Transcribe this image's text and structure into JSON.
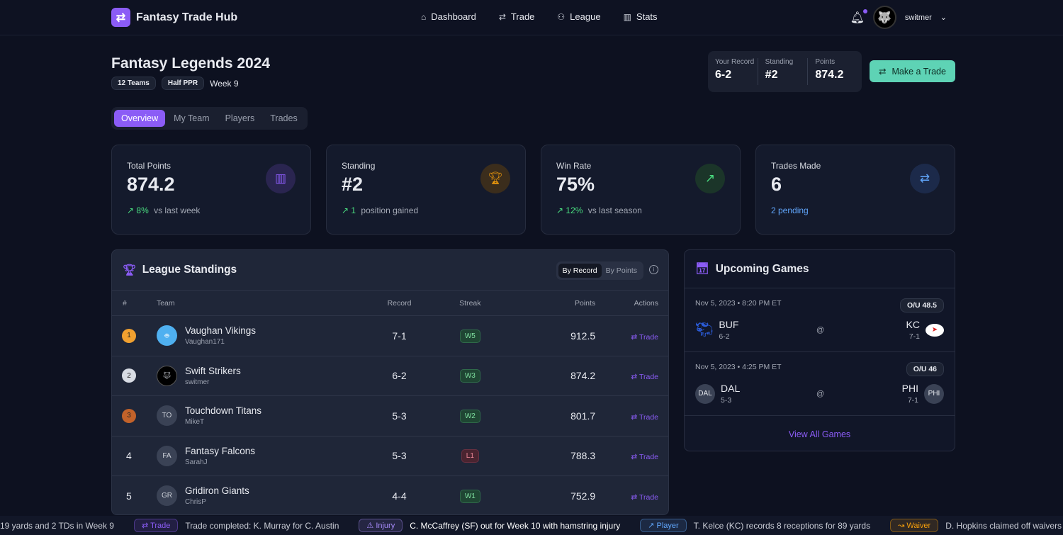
{
  "app": {
    "name": "Fantasy Trade Hub",
    "logo_icon": "swap-arrows-icon"
  },
  "nav": [
    {
      "label": "Dashboard",
      "icon": "home-icon"
    },
    {
      "label": "Trade",
      "icon": "swap-icon"
    },
    {
      "label": "League",
      "icon": "users-icon"
    },
    {
      "label": "Stats",
      "icon": "bar-chart-icon"
    }
  ],
  "user": {
    "name": "switmer",
    "has_notification": true
  },
  "league": {
    "title": "Fantasy Legends 2024",
    "tags": [
      "12 Teams",
      "Half PPR"
    ],
    "week": "Week 9"
  },
  "summary": {
    "record_label": "Your Record",
    "record": "6-2",
    "standing_label": "Standing",
    "standing": "#2",
    "points_label": "Points",
    "points": "874.2"
  },
  "make_trade": "Make a Trade",
  "tabs": [
    "Overview",
    "My Team",
    "Players",
    "Trades"
  ],
  "active_tab": "Overview",
  "stats": [
    {
      "label": "Total Points",
      "value": "874.2",
      "delta": "8%",
      "sub": "vs last week",
      "icon": "bar-chart-icon",
      "color": "#8b5cf6"
    },
    {
      "label": "Standing",
      "value": "#2",
      "delta": "1",
      "sub": "position gained",
      "icon": "trophy-icon",
      "color": "#f59e0b"
    },
    {
      "label": "Win Rate",
      "value": "75%",
      "delta": "12%",
      "sub": "vs last season",
      "icon": "trending-up-icon",
      "color": "#4ade80"
    },
    {
      "label": "Trades Made",
      "value": "6",
      "delta": "",
      "sub": "2 pending",
      "icon": "swap-icon",
      "color": "#60a5fa"
    }
  ],
  "standings": {
    "title": "League Standings",
    "toggle": [
      "By Record",
      "By Points"
    ],
    "active_toggle": "By Record",
    "columns": [
      "#",
      "Team",
      "Record",
      "Streak",
      "Points",
      "Actions"
    ],
    "rows": [
      {
        "rank": "1",
        "team": "Vaughan Vikings",
        "user": "Vaughan171",
        "avatar": "",
        "record": "7-1",
        "streak": "W5",
        "points": "912.5",
        "action": "Trade"
      },
      {
        "rank": "2",
        "team": "Swift Strikers",
        "user": "switmer",
        "avatar": "",
        "record": "6-2",
        "streak": "W3",
        "points": "874.2",
        "action": "Trade"
      },
      {
        "rank": "3",
        "team": "Touchdown Titans",
        "user": "MikeT",
        "avatar": "TO",
        "record": "5-3",
        "streak": "W2",
        "points": "801.7",
        "action": "Trade"
      },
      {
        "rank": "4",
        "team": "Fantasy Falcons",
        "user": "SarahJ",
        "avatar": "FA",
        "record": "5-3",
        "streak": "L1",
        "points": "788.3",
        "action": "Trade"
      },
      {
        "rank": "5",
        "team": "Gridiron Giants",
        "user": "ChrisP",
        "avatar": "GR",
        "record": "4-4",
        "streak": "W1",
        "points": "752.9",
        "action": "Trade"
      }
    ]
  },
  "games": {
    "title": "Upcoming Games",
    "view_all": "View All Games",
    "at": "@",
    "items": [
      {
        "date": "Nov 5, 2023 • 8:20 PM ET",
        "ou": "O/U 48.5",
        "away": "BUF",
        "away_rec": "6-2",
        "away_logo": "",
        "home": "KC",
        "home_rec": "7-1",
        "home_logo": ""
      },
      {
        "date": "Nov 5, 2023 • 4:25 PM ET",
        "ou": "O/U 46",
        "away": "DAL",
        "away_rec": "5-3",
        "away_logo": "DAL",
        "home": "PHI",
        "home_rec": "7-1",
        "home_logo": "PHI"
      }
    ]
  },
  "ticker": [
    {
      "badge": "",
      "text": "19 yards and 2 TDs in Week 9"
    },
    {
      "badge": "Trade",
      "text": "Trade completed: K. Murray for C. Austin",
      "color": "#8b5cf6"
    },
    {
      "badge": "Injury",
      "text": "C. McCaffrey (SF) out for Week 10 with hamstring injury",
      "color": "#a78bfa"
    },
    {
      "badge": "Player",
      "text": "T. Kelce (KC) records 8 receptions for 89 yards",
      "color": "#60a5fa"
    },
    {
      "badge": "Waiver",
      "text": "D. Hopkins claimed off waivers",
      "color": "#f59e0b"
    }
  ]
}
